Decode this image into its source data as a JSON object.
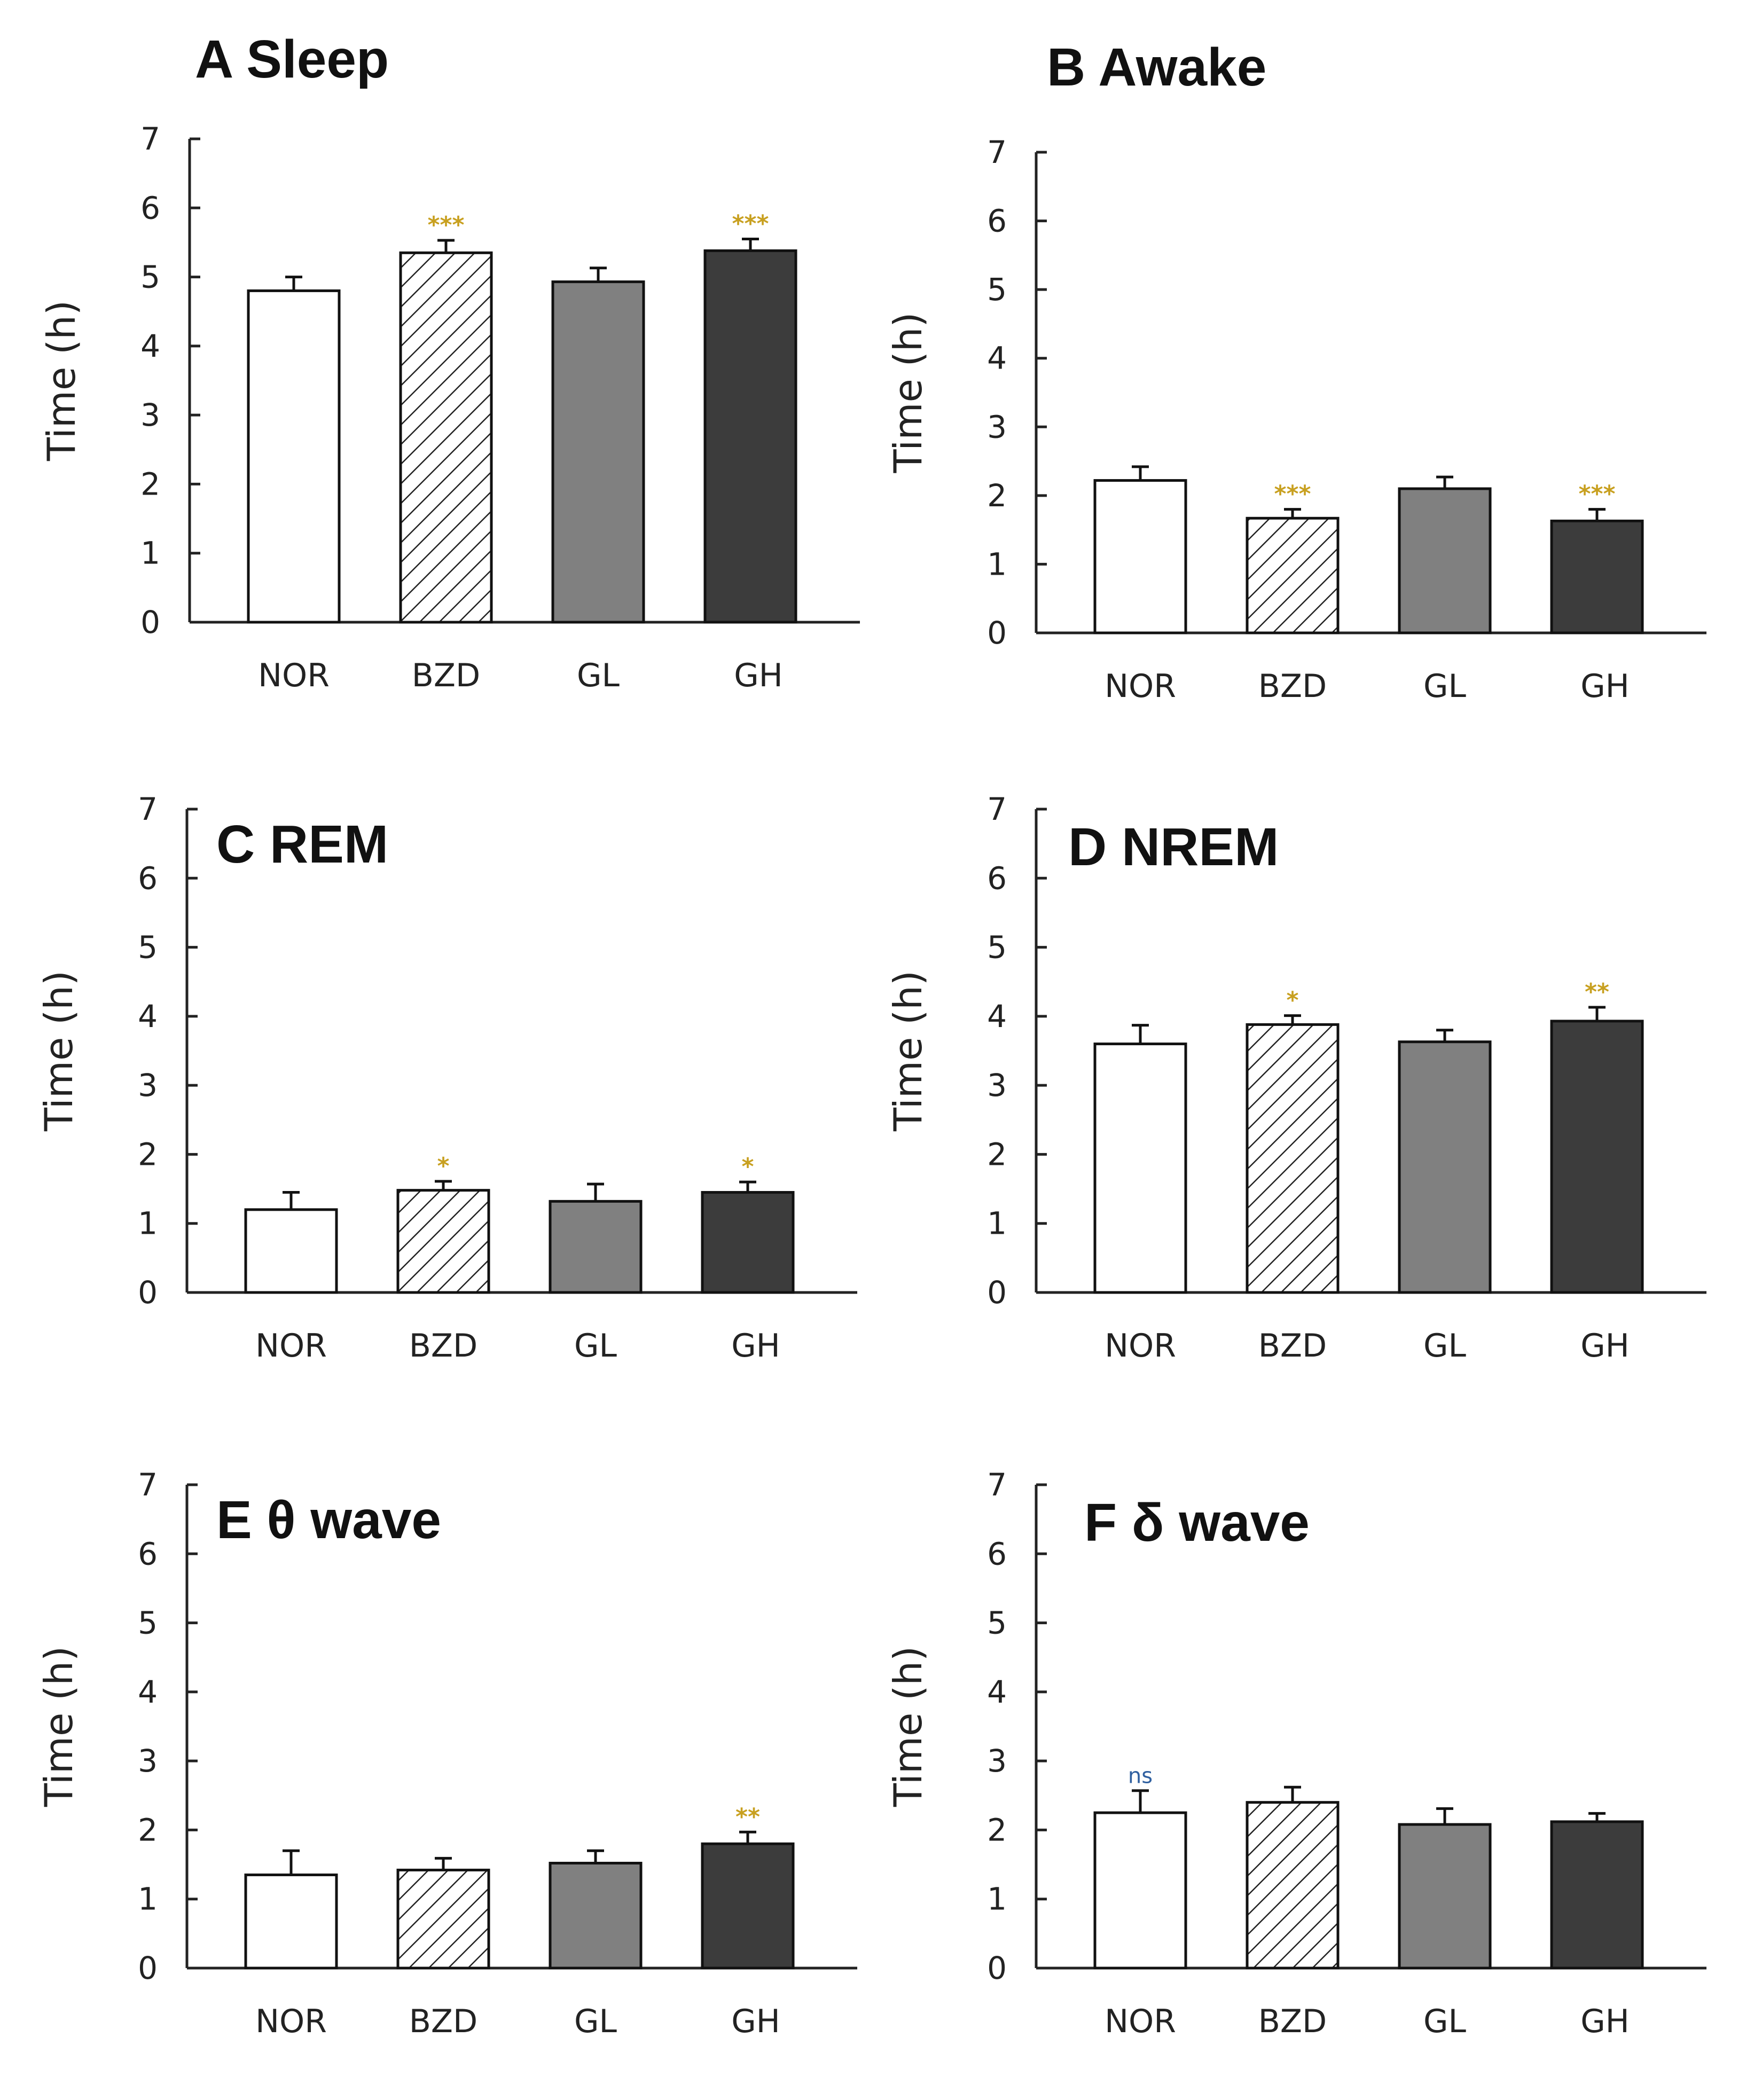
{
  "figure_colors": {
    "NOR": "#ffffff",
    "BZD": "hatch",
    "GL": "#808080",
    "GH": "#3c3c3c",
    "sig_star": "#c8a020",
    "sig_ns": "#3060a0"
  },
  "chart_data": [
    {
      "type": "bar",
      "panel": "A",
      "title": "A Sleep",
      "ylabel": "Time (h)",
      "xlabel": "",
      "ylim": [
        0,
        7
      ],
      "yticks": [
        "0",
        "1",
        "2",
        "3",
        "4",
        "5",
        "6",
        "7"
      ],
      "categories": [
        "NOR",
        "BZD",
        "GL",
        "GH"
      ],
      "values": [
        4.8,
        5.35,
        4.93,
        5.38
      ],
      "errors": [
        0.2,
        0.18,
        0.2,
        0.17
      ],
      "significance": [
        "",
        "***",
        "",
        "***"
      ]
    },
    {
      "type": "bar",
      "panel": "B",
      "title": "B Awake",
      "ylabel": "Time (h)",
      "xlabel": "",
      "ylim": [
        0,
        7
      ],
      "yticks": [
        "0",
        "1",
        "2",
        "3",
        "4",
        "5",
        "6",
        "7"
      ],
      "categories": [
        "NOR",
        "BZD",
        "GL",
        "GH"
      ],
      "values": [
        2.22,
        1.67,
        2.1,
        1.63
      ],
      "errors": [
        0.2,
        0.13,
        0.17,
        0.17
      ],
      "significance": [
        "",
        "***",
        "",
        "***"
      ]
    },
    {
      "type": "bar",
      "panel": "C",
      "title": "C REM",
      "ylabel": "Time (h)",
      "xlabel": "",
      "ylim": [
        0,
        7
      ],
      "yticks": [
        "0",
        "1",
        "2",
        "3",
        "4",
        "5",
        "6",
        "7"
      ],
      "categories": [
        "NOR",
        "BZD",
        "GL",
        "GH"
      ],
      "values": [
        1.2,
        1.48,
        1.32,
        1.45
      ],
      "errors": [
        0.25,
        0.13,
        0.25,
        0.15
      ],
      "significance": [
        "",
        "*",
        "",
        "*"
      ]
    },
    {
      "type": "bar",
      "panel": "D",
      "title": "D NREM",
      "ylabel": "Time (h)",
      "xlabel": "",
      "ylim": [
        0,
        7
      ],
      "yticks": [
        "0",
        "1",
        "2",
        "3",
        "4",
        "5",
        "6",
        "7"
      ],
      "categories": [
        "NOR",
        "BZD",
        "GL",
        "GH"
      ],
      "values": [
        3.6,
        3.88,
        3.63,
        3.93
      ],
      "errors": [
        0.27,
        0.13,
        0.17,
        0.2
      ],
      "significance": [
        "",
        "*",
        "",
        "**"
      ]
    },
    {
      "type": "bar",
      "panel": "E",
      "title": "E θ wave",
      "ylabel": "Time (h)",
      "xlabel": "",
      "ylim": [
        0,
        7
      ],
      "yticks": [
        "0",
        "1",
        "2",
        "3",
        "4",
        "5",
        "6",
        "7"
      ],
      "categories": [
        "NOR",
        "BZD",
        "GL",
        "GH"
      ],
      "values": [
        1.35,
        1.42,
        1.52,
        1.8
      ],
      "errors": [
        0.35,
        0.17,
        0.18,
        0.17
      ],
      "significance": [
        "",
        "",
        "",
        "**"
      ]
    },
    {
      "type": "bar",
      "panel": "F",
      "title": "F δ wave",
      "ylabel": "Time (h)",
      "xlabel": "",
      "ylim": [
        0,
        7
      ],
      "yticks": [
        "0",
        "1",
        "2",
        "3",
        "4",
        "5",
        "6",
        "7"
      ],
      "categories": [
        "NOR",
        "BZD",
        "GL",
        "GH"
      ],
      "values": [
        2.25,
        2.4,
        2.08,
        2.12
      ],
      "errors": [
        0.32,
        0.22,
        0.23,
        0.12
      ],
      "significance": [
        "ns",
        "",
        "",
        ""
      ]
    }
  ]
}
